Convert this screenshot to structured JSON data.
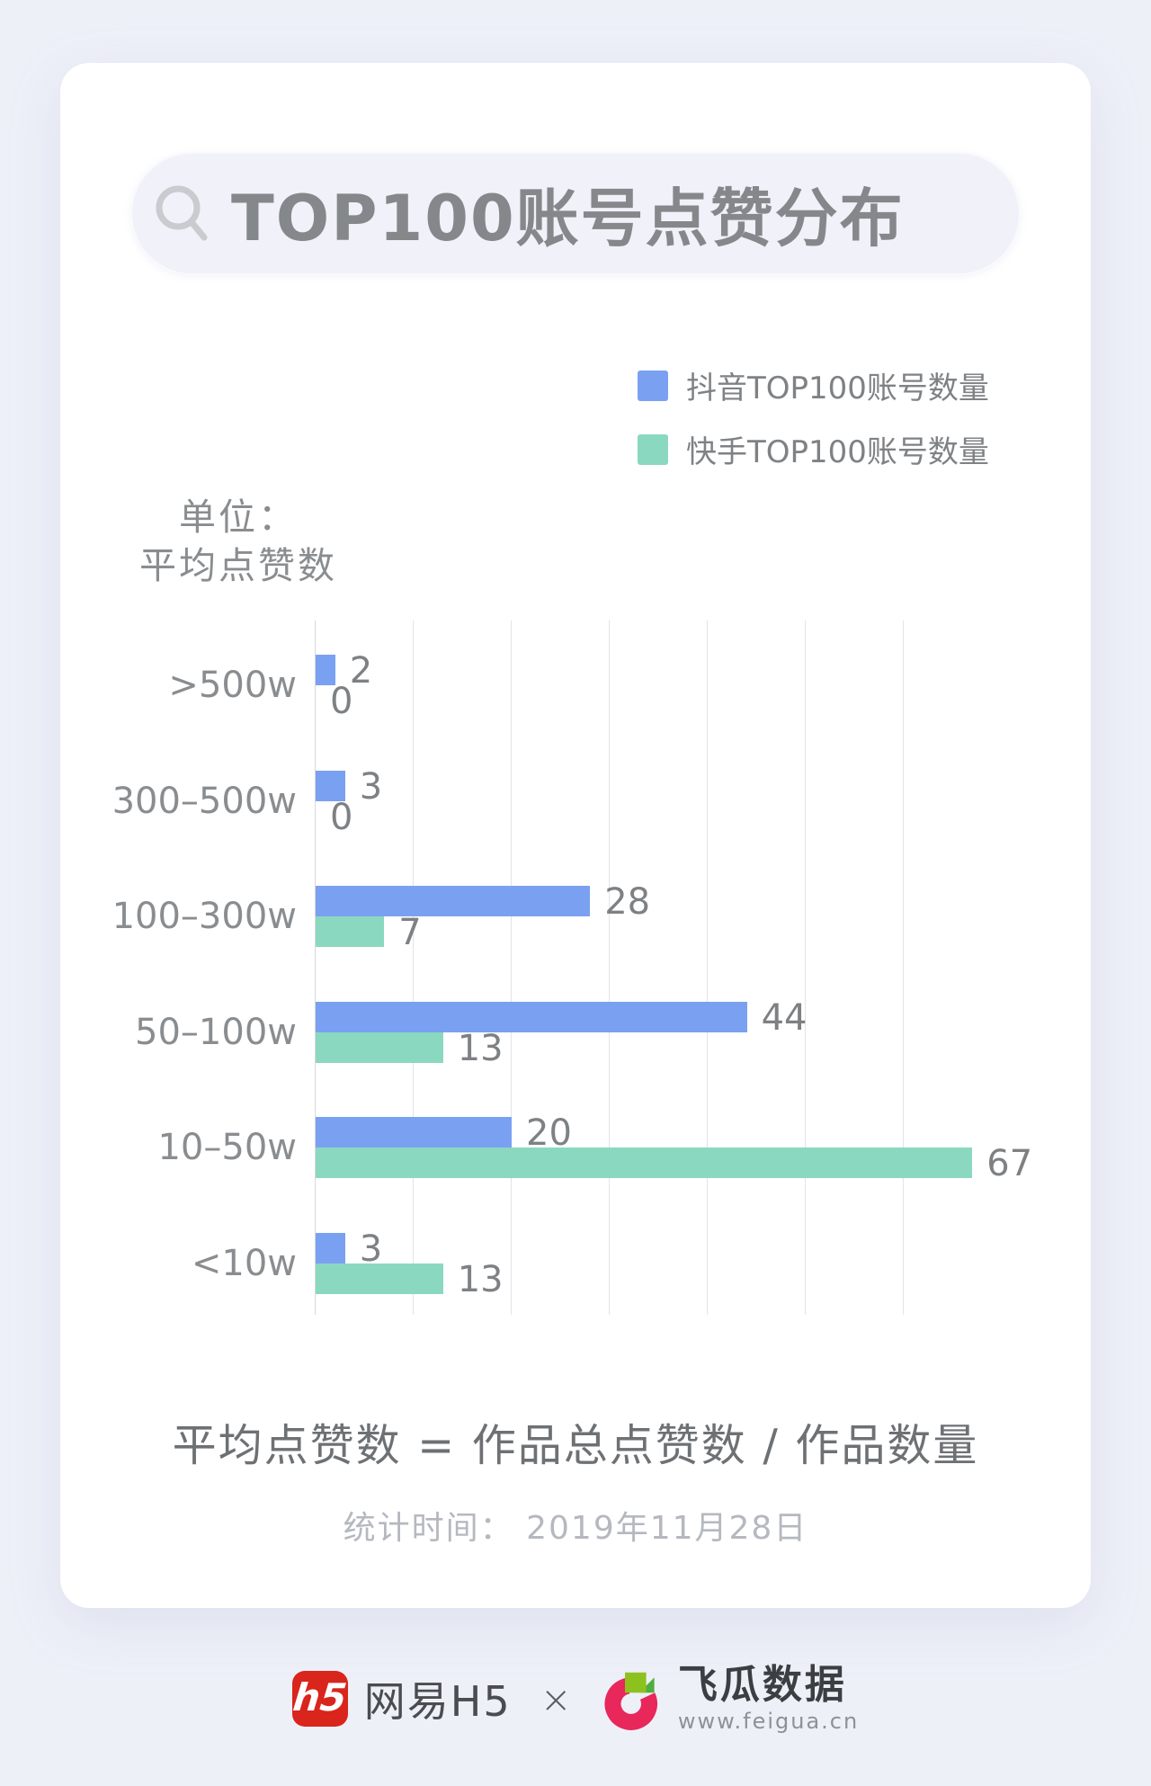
{
  "header": {
    "title": "TOP100账号点赞分布"
  },
  "unit_label": {
    "line1": "单位：",
    "line2": "平均点赞数"
  },
  "chart_data": {
    "type": "bar",
    "orientation": "horizontal",
    "title": "TOP100账号点赞分布",
    "unit": "平均点赞数",
    "categories": [
      ">500w",
      "300–500w",
      "100–300w",
      "50–100w",
      "10–50w",
      "<10w"
    ],
    "series": [
      {
        "name": "抖音TOP100账号数量",
        "color": "#7aa1f1",
        "values": [
          2,
          3,
          28,
          44,
          20,
          3
        ]
      },
      {
        "name": "快手TOP100账号数量",
        "color": "#8bd8c1",
        "values": [
          0,
          0,
          7,
          13,
          67,
          13
        ]
      }
    ],
    "xlim": [
      0,
      70
    ],
    "gridline_step": 10,
    "grid": true,
    "legend_position": "top-right"
  },
  "footnote": {
    "formula": "平均点赞数 = 作品总点赞数 / 作品数量",
    "stat_time": "统计时间： 2019年11月28日"
  },
  "footer": {
    "netease": {
      "logo_text": "h5",
      "name": "网易H5"
    },
    "separator": "×",
    "feigua": {
      "name": "飞瓜数据",
      "url": "www.feigua.cn"
    },
    "colors": {
      "netease_red": "#d9251c",
      "feigua_pink": "#e8275a",
      "feigua_green": "#8dc21e",
      "feigua_green_dark": "#4fae3d"
    }
  }
}
